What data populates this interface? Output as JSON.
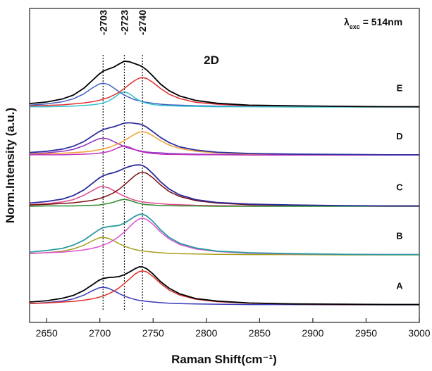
{
  "chart_data": {
    "type": "line",
    "xlabel": "Raman Shift(cm⁻¹)",
    "ylabel": "Norm.Intensity (a.u.)",
    "annotation": "2D",
    "excitation": {
      "symbol": "λ",
      "subscript": "exc",
      "text": " = 514nm"
    },
    "xlim": [
      2634,
      3000
    ],
    "ylim": [
      0,
      10
    ],
    "xticks": [
      2650,
      2700,
      2750,
      2800,
      2850,
      2900,
      2950,
      3000
    ],
    "vlines": [
      {
        "value": 2703,
        "label": "-2703"
      },
      {
        "value": 2723,
        "label": "-2723"
      },
      {
        "value": 2740,
        "label": "-2740"
      }
    ],
    "x": [
      2634,
      2650,
      2665,
      2675,
      2685,
      2693,
      2699,
      2703,
      2708,
      2713,
      2718,
      2723,
      2728,
      2733,
      2737,
      2740,
      2744,
      2750,
      2757,
      2765,
      2775,
      2790,
      2810,
      2840,
      2880,
      2930,
      2970,
      3000
    ],
    "series": [
      {
        "color": "#3a3ab8",
        "values": [
          0.6,
          0.63,
          0.68,
          0.75,
          0.87,
          1.01,
          1.1,
          1.12,
          1.09,
          1.01,
          0.92,
          0.84,
          0.78,
          0.73,
          0.7,
          0.69,
          0.67,
          0.65,
          0.63,
          0.61,
          0.6,
          0.59,
          0.58,
          0.57,
          0.57,
          0.56,
          0.56,
          0.56
        ]
      },
      {
        "color": "#e0302a",
        "values": [
          0.6,
          0.62,
          0.65,
          0.67,
          0.71,
          0.75,
          0.8,
          0.84,
          0.91,
          0.99,
          1.1,
          1.24,
          1.39,
          1.54,
          1.62,
          1.64,
          1.61,
          1.46,
          1.24,
          1.03,
          0.87,
          0.74,
          0.66,
          0.61,
          0.59,
          0.57,
          0.57,
          0.57
        ]
      },
      {
        "name": "A",
        "color": "#000000",
        "values": [
          0.65,
          0.69,
          0.77,
          0.86,
          1.02,
          1.2,
          1.34,
          1.4,
          1.43,
          1.44,
          1.46,
          1.52,
          1.61,
          1.71,
          1.77,
          1.77,
          1.71,
          1.54,
          1.3,
          1.09,
          0.91,
          0.76,
          0.68,
          0.62,
          0.59,
          0.58,
          0.57,
          0.57
        ]
      },
      {
        "color": "#a8a020",
        "values": [
          2.19,
          2.22,
          2.27,
          2.34,
          2.46,
          2.6,
          2.69,
          2.71,
          2.68,
          2.6,
          2.51,
          2.43,
          2.37,
          2.32,
          2.29,
          2.28,
          2.26,
          2.24,
          2.22,
          2.2,
          2.19,
          2.18,
          2.17,
          2.16,
          2.16,
          2.15,
          2.15,
          2.15
        ]
      },
      {
        "color": "#e050d0",
        "values": [
          2.2,
          2.22,
          2.24,
          2.27,
          2.31,
          2.36,
          2.41,
          2.46,
          2.53,
          2.62,
          2.74,
          2.88,
          3.05,
          3.21,
          3.3,
          3.32,
          3.28,
          3.12,
          2.88,
          2.66,
          2.48,
          2.34,
          2.26,
          2.2,
          2.18,
          2.17,
          2.16,
          2.16
        ]
      },
      {
        "name": "B",
        "color": "#2a9aa0",
        "values": [
          2.24,
          2.29,
          2.36,
          2.46,
          2.62,
          2.81,
          2.95,
          3.02,
          3.05,
          3.07,
          3.09,
          3.16,
          3.27,
          3.38,
          3.44,
          3.45,
          3.39,
          3.21,
          2.95,
          2.71,
          2.52,
          2.37,
          2.27,
          2.22,
          2.19,
          2.17,
          2.16,
          2.16
        ]
      },
      {
        "color": "#e04890",
        "values": [
          3.75,
          3.78,
          3.84,
          3.91,
          4.05,
          4.2,
          4.31,
          4.33,
          4.29,
          4.2,
          4.1,
          4.02,
          3.95,
          3.89,
          3.86,
          3.84,
          3.82,
          3.8,
          3.78,
          3.76,
          3.75,
          3.73,
          3.72,
          3.71,
          3.71,
          3.71,
          3.7,
          3.7
        ]
      },
      {
        "color": "#7a1010",
        "values": [
          3.74,
          3.76,
          3.79,
          3.81,
          3.85,
          3.89,
          3.94,
          3.98,
          4.05,
          4.13,
          4.24,
          4.38,
          4.53,
          4.68,
          4.76,
          4.78,
          4.75,
          4.6,
          4.38,
          4.17,
          4.01,
          3.88,
          3.8,
          3.75,
          3.73,
          3.71,
          3.71,
          3.71
        ]
      },
      {
        "color": "#2a8a2a",
        "values": [
          3.7,
          3.71,
          3.71,
          3.71,
          3.72,
          3.73,
          3.74,
          3.76,
          3.79,
          3.83,
          3.89,
          3.92,
          3.89,
          3.83,
          3.79,
          3.77,
          3.75,
          3.74,
          3.72,
          3.72,
          3.71,
          3.71,
          3.7,
          3.7,
          3.7,
          3.7,
          3.7,
          3.7
        ]
      },
      {
        "name": "C",
        "color": "#2a2a9a",
        "values": [
          3.8,
          3.85,
          3.93,
          4.04,
          4.22,
          4.43,
          4.59,
          4.67,
          4.73,
          4.77,
          4.83,
          4.91,
          4.97,
          5.01,
          5.02,
          5.0,
          4.92,
          4.73,
          4.48,
          4.25,
          4.06,
          3.91,
          3.82,
          3.77,
          3.74,
          3.72,
          3.71,
          3.71
        ]
      },
      {
        "color": "#9030c0",
        "values": [
          5.37,
          5.4,
          5.45,
          5.51,
          5.63,
          5.76,
          5.85,
          5.87,
          5.84,
          5.76,
          5.68,
          5.6,
          5.54,
          5.5,
          5.47,
          5.45,
          5.43,
          5.41,
          5.4,
          5.38,
          5.37,
          5.36,
          5.35,
          5.34,
          5.34,
          5.33,
          5.33,
          5.33
        ]
      },
      {
        "color": "#f0a030",
        "values": [
          5.36,
          5.37,
          5.39,
          5.41,
          5.43,
          5.46,
          5.5,
          5.52,
          5.57,
          5.63,
          5.7,
          5.79,
          5.9,
          6.0,
          6.06,
          6.07,
          6.05,
          5.94,
          5.79,
          5.65,
          5.54,
          5.45,
          5.4,
          5.36,
          5.35,
          5.34,
          5.34,
          5.34
        ]
      },
      {
        "color": "#c030c0",
        "values": [
          5.34,
          5.34,
          5.34,
          5.35,
          5.36,
          5.37,
          5.39,
          5.41,
          5.44,
          5.5,
          5.58,
          5.62,
          5.58,
          5.5,
          5.45,
          5.43,
          5.4,
          5.38,
          5.36,
          5.35,
          5.35,
          5.34,
          5.34,
          5.33,
          5.33,
          5.33,
          5.33,
          5.33
        ]
      },
      {
        "name": "D",
        "color": "#3030a0",
        "values": [
          5.41,
          5.45,
          5.52,
          5.61,
          5.76,
          5.94,
          6.07,
          6.14,
          6.19,
          6.23,
          6.29,
          6.35,
          6.36,
          6.34,
          6.32,
          6.29,
          6.22,
          6.07,
          5.89,
          5.73,
          5.59,
          5.49,
          5.42,
          5.38,
          5.36,
          5.35,
          5.34,
          5.34
        ]
      },
      {
        "color": "#4060c0",
        "values": [
          6.92,
          6.96,
          7.03,
          7.12,
          7.28,
          7.47,
          7.59,
          7.62,
          7.58,
          7.47,
          7.35,
          7.24,
          7.16,
          7.09,
          7.06,
          7.03,
          7.01,
          6.98,
          6.95,
          6.93,
          6.92,
          6.9,
          6.89,
          6.88,
          6.87,
          6.87,
          6.87,
          6.86
        ]
      },
      {
        "color": "#e03030",
        "values": [
          6.9,
          6.91,
          6.93,
          6.96,
          6.99,
          7.03,
          7.07,
          7.11,
          7.16,
          7.24,
          7.33,
          7.45,
          7.59,
          7.71,
          7.78,
          7.8,
          7.77,
          7.64,
          7.45,
          7.27,
          7.13,
          7.01,
          6.95,
          6.9,
          6.88,
          6.87,
          6.87,
          6.87
        ]
      },
      {
        "color": "#30c0d0",
        "values": [
          6.87,
          6.87,
          6.88,
          6.89,
          6.91,
          6.93,
          6.96,
          6.99,
          7.05,
          7.15,
          7.28,
          7.35,
          7.28,
          7.15,
          7.07,
          7.02,
          6.98,
          6.94,
          6.91,
          6.9,
          6.89,
          6.88,
          6.87,
          6.87,
          6.86,
          6.86,
          6.86,
          6.86
        ]
      },
      {
        "name": "E",
        "color": "#000000",
        "values": [
          6.97,
          7.02,
          7.12,
          7.24,
          7.46,
          7.71,
          7.9,
          8.0,
          8.07,
          8.13,
          8.23,
          8.32,
          8.3,
          8.24,
          8.19,
          8.14,
          8.04,
          7.84,
          7.59,
          7.38,
          7.21,
          7.07,
          6.98,
          6.92,
          6.9,
          6.88,
          6.87,
          6.87
        ]
      }
    ]
  }
}
